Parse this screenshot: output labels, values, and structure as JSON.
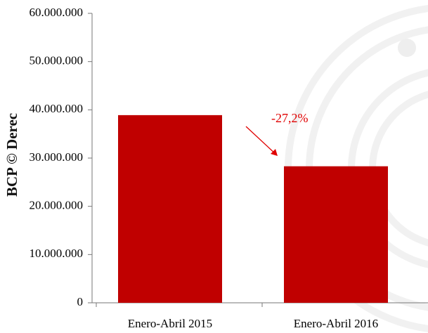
{
  "chart_data": {
    "type": "bar",
    "categories": [
      "Enero-Abril 2015",
      "Enero-Abril 2016"
    ],
    "values": [
      38900000,
      28300000
    ],
    "color": "#c00000",
    "ylim": [
      0,
      60000000
    ],
    "yticks": [
      0,
      {
        "value": 10000000,
        "label": "10.000.000"
      },
      {
        "value": 20000000,
        "label": "20.000.000"
      },
      {
        "value": 30000000,
        "label": "30.000.000"
      },
      {
        "value": 40000000,
        "label": "40.000.000"
      },
      {
        "value": 50000000,
        "label": "50.000.000"
      },
      {
        "value": 60000000,
        "label": "60.000.000"
      }
    ],
    "annotation": "-27,2%",
    "watermark": "BCP © Derec"
  }
}
